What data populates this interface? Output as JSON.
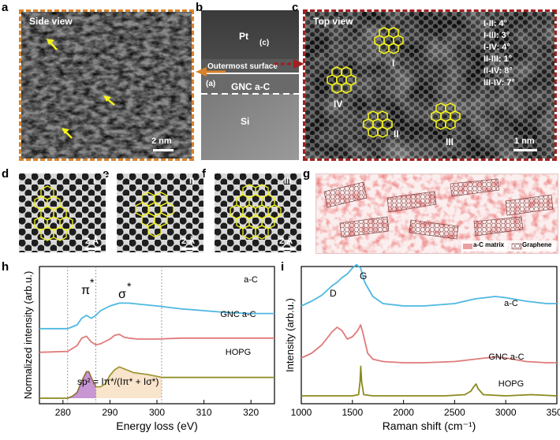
{
  "panel_labels": {
    "a": "a",
    "b": "b",
    "c": "c",
    "d": "d",
    "e": "e",
    "f": "f",
    "g": "g",
    "h": "h",
    "i": "i"
  },
  "panel_a": {
    "title": "Side view",
    "scale": "2 nm"
  },
  "panel_b": {
    "pt": "Pt",
    "outer": "Outermost surface",
    "gnc": "GNC a-C",
    "si": "Si",
    "ref_a": "(a)",
    "ref_c": "(c)"
  },
  "panel_c": {
    "title": "Top view",
    "scale": "1 nm",
    "angles": [
      "I-II: 4°",
      "I-III: 3°",
      "I-IV: 4°",
      "II-III: 1°",
      "II-IV: 8°",
      "III-IV: 7°"
    ],
    "domains": [
      "I",
      "II",
      "III",
      "IV"
    ]
  },
  "panel_d": {
    "roman": "I",
    "scale": "2 Å"
  },
  "panel_e": {
    "roman": "II",
    "scale": "2 Å"
  },
  "panel_f": {
    "roman": "III",
    "scale": "2 Å"
  },
  "panel_g": {
    "legend_matrix": "a-C matrix",
    "legend_graphene": "Graphene"
  },
  "colors": {
    "blue": "#4db8e0",
    "pink": "#e07a7a",
    "olive": "#8a8a1e",
    "hex": "#f2f21a",
    "orange": "#d9822b",
    "red": "#a31f1f"
  },
  "chart_data": [
    {
      "id": "h",
      "type": "line",
      "xlabel": "Energy loss (eV)",
      "ylabel": "Normalized intensity (arb.u.)",
      "xlim": [
        275,
        325
      ],
      "xticks": [
        280,
        290,
        300,
        310,
        320
      ],
      "vlines": [
        281,
        287,
        301
      ],
      "annotations": {
        "pi": "π",
        "pi_star": "*",
        "sigma": "σ",
        "sigma_star": "*",
        "formula": "sp² = Iπ*/(Iπ* + Iσ*)"
      },
      "series": [
        {
          "name": "a-C",
          "x": [
            275,
            281,
            283,
            284,
            285,
            286,
            287,
            288,
            290,
            292,
            294,
            296,
            300,
            305,
            310,
            315,
            320,
            325
          ],
          "y": [
            0.86,
            0.86,
            0.9,
            0.97,
            1.0,
            0.97,
            1.0,
            1.05,
            1.1,
            1.13,
            1.13,
            1.12,
            1.1,
            1.07,
            1.05,
            1.03,
            1.02,
            1.02
          ]
        },
        {
          "name": "GNC a-C",
          "x": [
            275,
            281,
            283,
            284,
            285,
            286,
            287,
            288,
            290,
            291,
            292,
            293,
            294,
            296,
            300,
            305,
            310,
            315,
            320,
            325
          ],
          "y": [
            0.46,
            0.47,
            0.53,
            0.61,
            0.63,
            0.57,
            0.54,
            0.55,
            0.6,
            0.64,
            0.65,
            0.62,
            0.61,
            0.6,
            0.6,
            0.61,
            0.61,
            0.61,
            0.61,
            0.61
          ]
        },
        {
          "name": "HOPG",
          "x": [
            275,
            281,
            282,
            283,
            284,
            285,
            285.5,
            286,
            287,
            288,
            289,
            290,
            291,
            292,
            293,
            295,
            298,
            301,
            305,
            310,
            315,
            320,
            325
          ],
          "y": [
            0.0,
            0.0,
            0.02,
            0.06,
            0.18,
            0.28,
            0.28,
            0.22,
            0.12,
            0.12,
            0.15,
            0.24,
            0.3,
            0.33,
            0.31,
            0.27,
            0.25,
            0.22,
            0.22,
            0.22,
            0.22,
            0.22,
            0.22
          ]
        }
      ]
    },
    {
      "id": "i",
      "type": "line",
      "xlabel": "Raman shift (cm⁻¹)",
      "ylabel": "Intensity (arb.u.)",
      "xlim": [
        1000,
        3500
      ],
      "xticks": [
        1000,
        1500,
        2000,
        2500,
        3000,
        3500
      ],
      "peak_labels": {
        "D": "D",
        "G": "G"
      },
      "series": [
        {
          "name": "a-C",
          "x": [
            1000,
            1100,
            1200,
            1300,
            1350,
            1400,
            1450,
            1500,
            1540,
            1580,
            1620,
            1700,
            1800,
            2000,
            2200,
            2500,
            2700,
            2900,
            3000,
            3200,
            3400,
            3500
          ],
          "y": [
            0.78,
            0.82,
            0.87,
            0.95,
            0.98,
            1.02,
            1.05,
            1.1,
            1.13,
            1.1,
            0.98,
            0.86,
            0.8,
            0.78,
            0.78,
            0.8,
            0.84,
            0.86,
            0.85,
            0.82,
            0.8,
            0.8
          ]
        },
        {
          "name": "GNC a-C",
          "x": [
            1000,
            1100,
            1200,
            1300,
            1350,
            1400,
            1450,
            1500,
            1550,
            1580,
            1600,
            1650,
            1700,
            1800,
            2000,
            2200,
            2500,
            2700,
            2900,
            3000,
            3200,
            3400,
            3500
          ],
          "y": [
            0.34,
            0.38,
            0.45,
            0.56,
            0.6,
            0.57,
            0.5,
            0.52,
            0.57,
            0.62,
            0.56,
            0.38,
            0.33,
            0.31,
            0.3,
            0.3,
            0.31,
            0.33,
            0.35,
            0.34,
            0.31,
            0.3,
            0.3
          ]
        },
        {
          "name": "HOPG",
          "x": [
            1000,
            1300,
            1500,
            1560,
            1575,
            1582,
            1590,
            1610,
            1700,
            2000,
            2400,
            2600,
            2660,
            2690,
            2710,
            2730,
            2780,
            3000,
            3250,
            3500
          ],
          "y": [
            0.02,
            0.02,
            0.02,
            0.03,
            0.14,
            0.27,
            0.14,
            0.03,
            0.02,
            0.02,
            0.02,
            0.03,
            0.06,
            0.1,
            0.12,
            0.08,
            0.03,
            0.02,
            0.03,
            0.02
          ]
        }
      ]
    }
  ]
}
